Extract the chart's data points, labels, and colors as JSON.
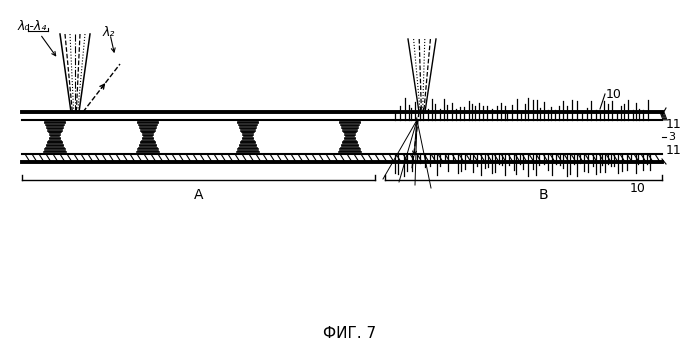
{
  "title": "ФИГ. 7",
  "label_lambda04": "λ₀-λ₄",
  "label_lambda2": "λ₂",
  "label_A": "A",
  "label_B": "B",
  "label_10_top": "10",
  "label_10_bot": "10",
  "label_11_top": "11",
  "label_11_bot": "11",
  "label_3": "3",
  "bg_color": "#ffffff",
  "line_color": "#000000",
  "fig_width": 7.0,
  "fig_height": 3.64
}
